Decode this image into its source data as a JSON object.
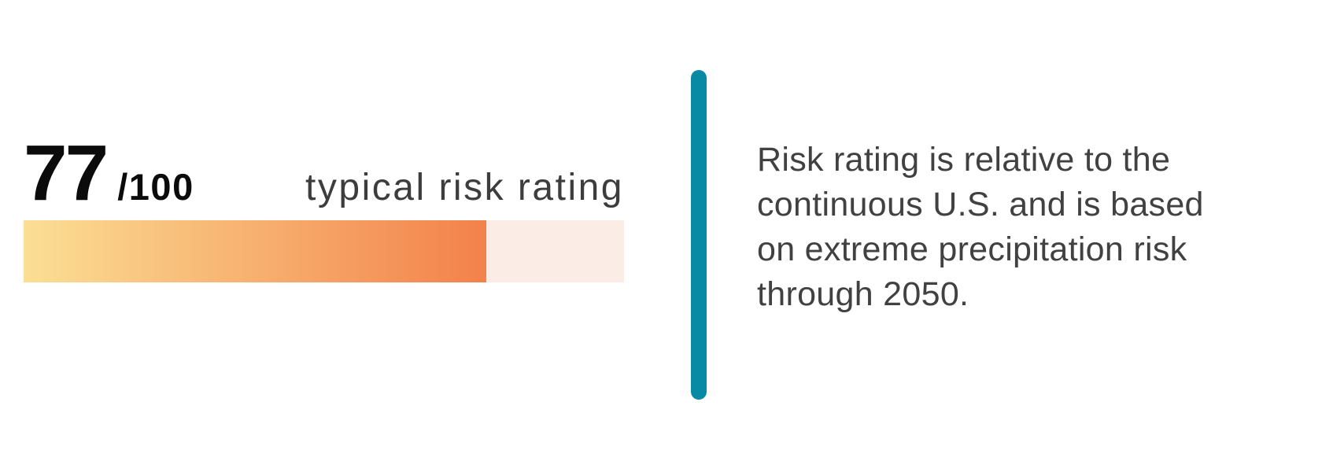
{
  "score_panel": {
    "score": "77",
    "score_suffix": "/100",
    "label": "typical risk rating",
    "bar": {
      "fill_percent": 77,
      "max": 100,
      "gradient_start_color": "#FBDF94",
      "gradient_end_color": "#F3814B",
      "track_color": "#FBEDE5"
    }
  },
  "divider": {
    "color": "#0889A4"
  },
  "description": {
    "text": "Risk rating is relative to the\ncontinuous U.S. and is based\non extreme precipitation risk\nthrough 2050."
  }
}
